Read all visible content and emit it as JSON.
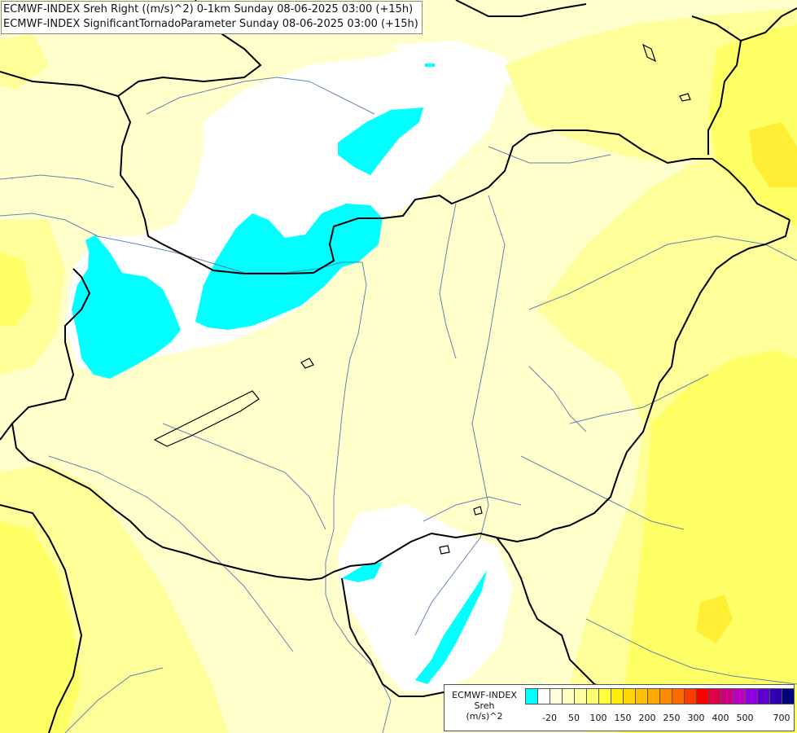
{
  "title": {
    "line1": "ECMWF-INDEX Sreh Right ((m/s)^2) 0-1km Sunday 08-06-2025 03:00 (+15h)",
    "line2": "ECMWF-INDEX SignificantTornadoParameter Sunday 08-06-2025 03:00 (+15h)"
  },
  "legend": {
    "line1": "ECMWF-INDEX",
    "line2": "Sreh",
    "line3": "(m/s)^2",
    "colors": [
      "#00ffff",
      "#ffffff",
      "#ffffe0",
      "#ffffc0",
      "#ffffa0",
      "#ffff70",
      "#ffff40",
      "#ffee00",
      "#ffd700",
      "#ffc000",
      "#ffa800",
      "#ff8a00",
      "#ff6a00",
      "#ff3c00",
      "#ff0000",
      "#e0004a",
      "#cc0080",
      "#c000c0",
      "#9000e0",
      "#6000d0",
      "#3000b0",
      "#00007a"
    ],
    "ticks": [
      "-20",
      "50",
      "100",
      "150",
      "200",
      "250",
      "300",
      "400",
      "500",
      "700"
    ]
  },
  "colors": {
    "cyan": "#00ffff",
    "white": "#ffffff",
    "pale": "#ffffcc",
    "light_yellow": "#ffff99",
    "yellow": "#ffff66",
    "gold": "#ffee33",
    "border": "#000000",
    "river": "#4a6fb0"
  }
}
